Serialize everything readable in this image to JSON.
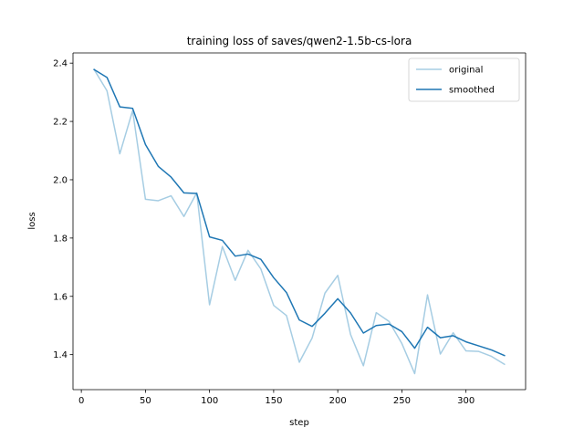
{
  "chart_data": {
    "type": "line",
    "title": "training loss of saves/qwen2-1.5b-cs-lora",
    "xlabel": "step",
    "ylabel": "loss",
    "xlim": [
      -6.5,
      346.5
    ],
    "ylim": [
      1.28,
      2.435
    ],
    "xticks": [
      0,
      50,
      100,
      150,
      200,
      250,
      300
    ],
    "yticks": [
      1.4,
      1.6,
      1.8,
      2.0,
      2.2,
      2.4
    ],
    "ytick_labels": [
      "1.4",
      "1.6",
      "1.8",
      "2.0",
      "2.2",
      "2.4"
    ],
    "grid": false,
    "legend_position": "top-right",
    "x": [
      10,
      20,
      30,
      40,
      50,
      60,
      70,
      80,
      90,
      100,
      110,
      120,
      130,
      140,
      150,
      160,
      170,
      180,
      190,
      200,
      210,
      220,
      230,
      240,
      250,
      260,
      270,
      280,
      290,
      300,
      310,
      320,
      330
    ],
    "series": [
      {
        "name": "original",
        "color": "#a6cde3",
        "values": [
          2.378,
          2.305,
          2.089,
          2.237,
          1.933,
          1.928,
          1.945,
          1.874,
          1.955,
          1.571,
          1.771,
          1.655,
          1.758,
          1.694,
          1.569,
          1.534,
          1.374,
          1.457,
          1.611,
          1.672,
          1.469,
          1.362,
          1.544,
          1.514,
          1.438,
          1.335,
          1.605,
          1.402,
          1.475,
          1.413,
          1.411,
          1.394,
          1.367
        ]
      },
      {
        "name": "smoothed",
        "color": "#1f77b4",
        "values": [
          2.378,
          2.351,
          2.25,
          2.245,
          2.121,
          2.046,
          2.009,
          1.955,
          1.953,
          1.804,
          1.792,
          1.738,
          1.745,
          1.727,
          1.664,
          1.613,
          1.519,
          1.497,
          1.542,
          1.592,
          1.543,
          1.474,
          1.5,
          1.505,
          1.479,
          1.422,
          1.494,
          1.458,
          1.465,
          1.444,
          1.43,
          1.416,
          1.397
        ]
      }
    ]
  }
}
